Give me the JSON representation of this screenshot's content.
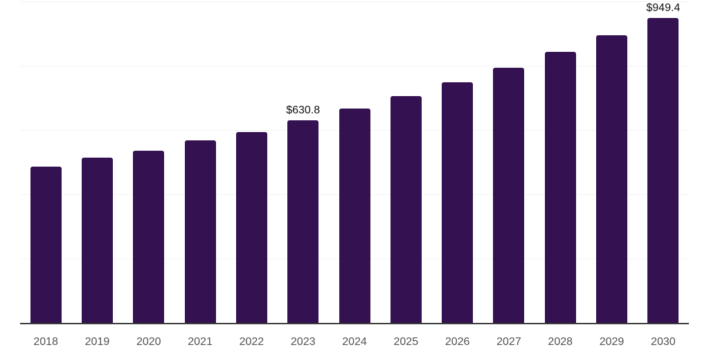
{
  "chart_data": {
    "type": "bar",
    "title": "",
    "xlabel": "",
    "ylabel": "",
    "categories": [
      "2018",
      "2019",
      "2020",
      "2021",
      "2022",
      "2023",
      "2024",
      "2025",
      "2026",
      "2027",
      "2028",
      "2029",
      "2030"
    ],
    "values": [
      487.1,
      515.7,
      535.8,
      568.0,
      595.1,
      630.8,
      668.0,
      705.4,
      748.3,
      793.3,
      843.3,
      894.8,
      949.4
    ],
    "data_labels": [
      {
        "category": "2023",
        "index": 5,
        "text": "$630.8"
      },
      {
        "category": "2030",
        "index": 12,
        "text": "$949.4"
      }
    ],
    "ylim": [
      0,
      1000
    ],
    "gridline_values": [
      200,
      400,
      600,
      800,
      1000
    ],
    "grid": true,
    "legend": false,
    "colors": {
      "bar": "#341150",
      "gridline": "#f3f3f5",
      "axis_line": "#3a3a3a",
      "tick_label": "#515151",
      "data_label": "#111111",
      "background": "#ffffff"
    }
  }
}
